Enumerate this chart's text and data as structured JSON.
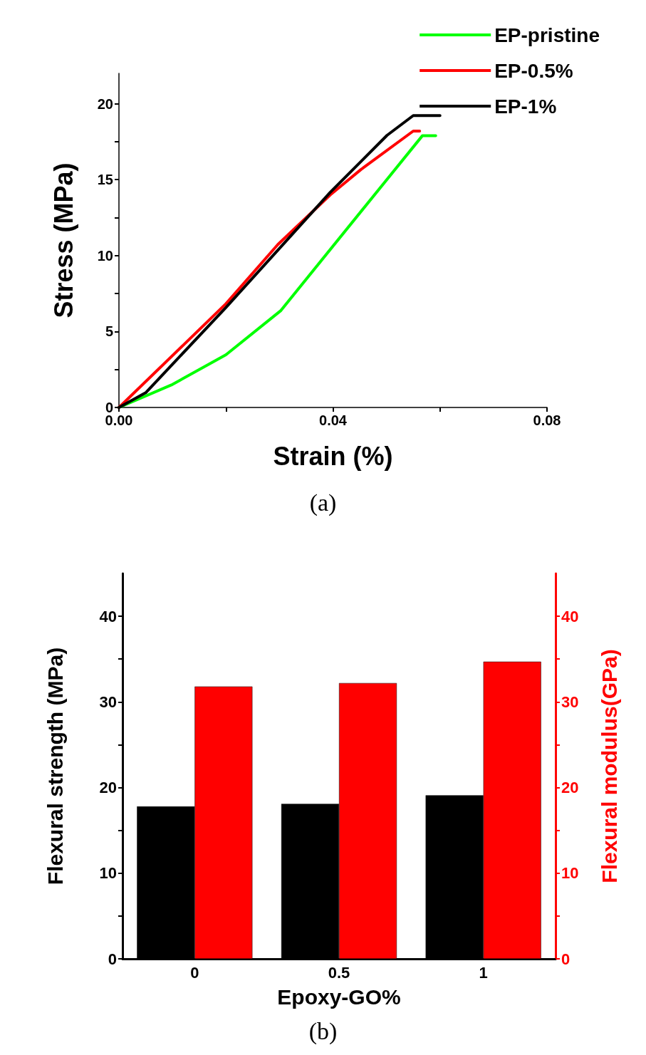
{
  "chart_data": [
    {
      "type": "line",
      "xlabel": "Strain (%)",
      "ylabel": "Stress (MPa)",
      "legend": "top right",
      "grid": false,
      "marker": "none",
      "line_style": "solid",
      "xlim": [
        0,
        0.08
      ],
      "xticks": [
        {
          "value": 0,
          "label": "0.00"
        },
        {
          "value": 0.02,
          "label": null
        },
        {
          "value": 0.04,
          "label": "0.04"
        },
        {
          "value": 0.06,
          "label": null
        },
        {
          "value": 0.08,
          "label": "0.08"
        }
      ],
      "ylim": [
        0,
        22
      ],
      "yticks": [
        0,
        {
          "value": 2.5,
          "label": null
        },
        5,
        {
          "value": 7.5,
          "label": null
        },
        10,
        {
          "value": 12.5,
          "label": null
        },
        15,
        {
          "value": 17.5,
          "label": null
        },
        20
      ],
      "series": [
        {
          "name": "EP-pristine",
          "color": "#00ff00",
          "x": [
            0,
            0.0098,
            0.02,
            0.0302,
            0.0567,
            0.0592
          ],
          "values": [
            0,
            1.48,
            3.47,
            6.36,
            17.89,
            17.89
          ]
        },
        {
          "name": "EP-0.5%",
          "color": "#ff0000",
          "x": [
            0,
            0.02,
            0.0297,
            0.0395,
            0.0452,
            0.055,
            0.0562
          ],
          "values": [
            0,
            6.83,
            10.73,
            14.0,
            15.66,
            18.2,
            18.2
          ]
        },
        {
          "name": "EP-1%",
          "color": "#000000",
          "x": [
            0,
            0.005,
            0.02,
            0.0395,
            0.0501,
            0.055,
            0.06
          ],
          "values": [
            0,
            0.97,
            6.59,
            14.17,
            17.92,
            19.22,
            19.22
          ]
        }
      ],
      "annotations": [
        "(a)"
      ]
    },
    {
      "type": "bar",
      "xlabel": "Epoxy-GO%",
      "ylabel": "Flexural strength (MPa)",
      "y2label": "Flexural modulus(GPa)",
      "grid": false,
      "legend": false,
      "categories": [
        "0",
        "0.5",
        "1"
      ],
      "ylim": [
        0,
        45
      ],
      "yticks": [
        0,
        {
          "value": 5,
          "label": null
        },
        10,
        {
          "value": 15,
          "label": null
        },
        20,
        {
          "value": 25,
          "label": null
        },
        30,
        {
          "value": 35,
          "label": null
        },
        40
      ],
      "y2lim": [
        0,
        45
      ],
      "y2ticks": [
        0,
        {
          "value": 5,
          "label": null
        },
        10,
        {
          "value": 15,
          "label": null
        },
        20,
        {
          "value": 25,
          "label": null
        },
        30,
        {
          "value": 35,
          "label": null
        },
        40
      ],
      "series": [
        {
          "color": "#000000",
          "values": [
            17.8,
            18.1,
            19.1
          ]
        },
        {
          "color": "#ff0000",
          "axis": "y2",
          "values": [
            31.8,
            32.2,
            34.7
          ]
        }
      ],
      "annotations": [
        "(b)"
      ]
    }
  ]
}
